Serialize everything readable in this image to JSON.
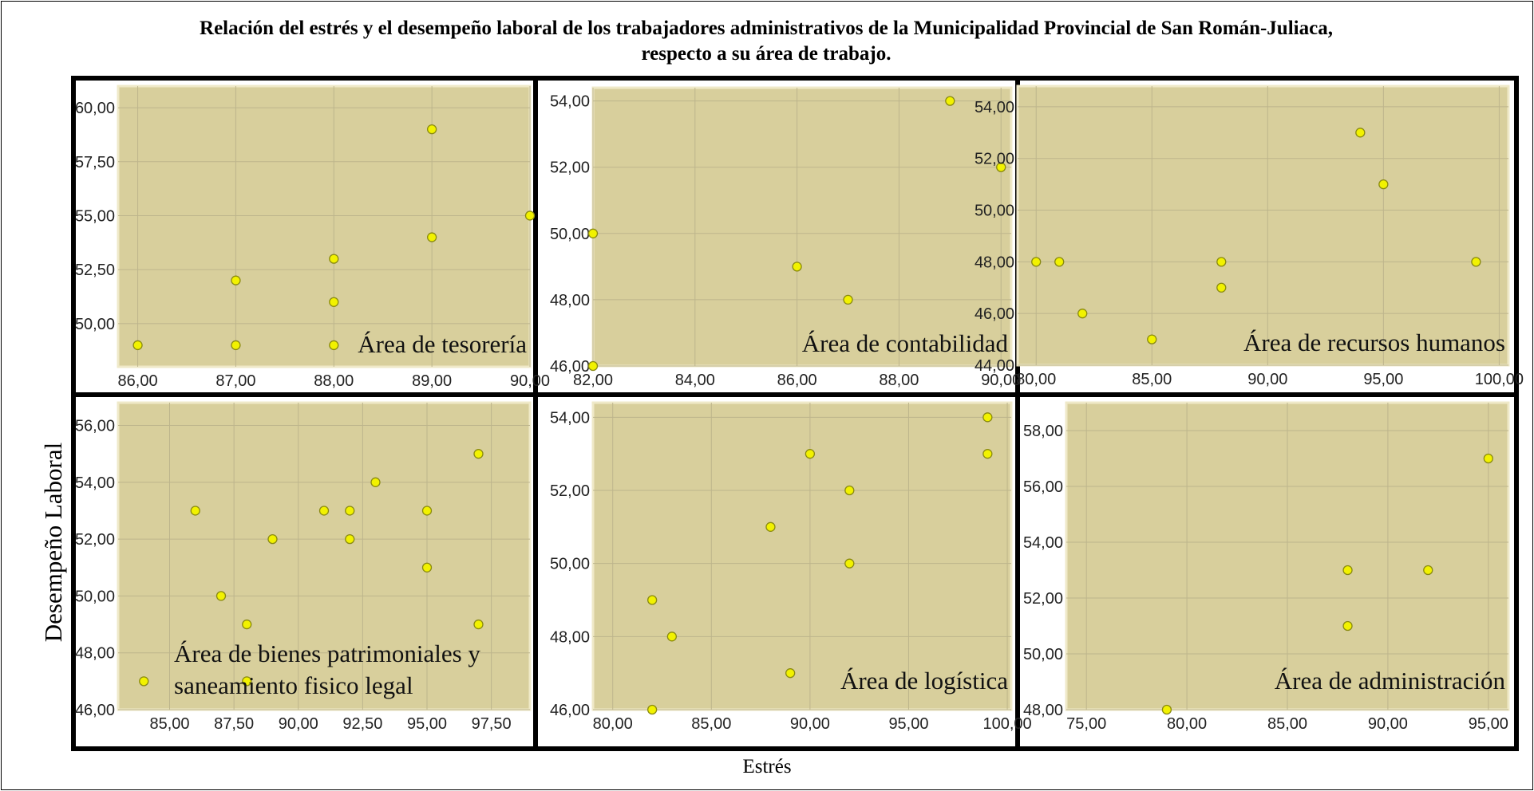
{
  "title_line1": "Relación del estrés y el desempeño laboral de los trabajadores administrativos de la Municipalidad Provincial de San Román-Juliaca,",
  "title_line2": "respecto a su área de trabajo.",
  "ylabel": "Desempeño Laboral",
  "xlabel": "Estrés",
  "colors": {
    "plot_bg": "#d8cf9c",
    "grid": "#bdb58c",
    "point_fill": "#f2f200",
    "point_stroke": "#8a8a10"
  },
  "chart_data": [
    {
      "type": "scatter",
      "title": "Área de tesorería",
      "xlim": [
        85.8,
        90.0
      ],
      "ylim": [
        48.0,
        61.0
      ],
      "xticks": [
        "86,00",
        "87,00",
        "88,00",
        "89,00",
        "90,00"
      ],
      "xtick_values": [
        86,
        87,
        88,
        89,
        90
      ],
      "yticks": [
        "50,00",
        "52,50",
        "55,00",
        "57,50",
        "60,00"
      ],
      "ytick_values": [
        50,
        52.5,
        55,
        57.5,
        60
      ],
      "grid": true,
      "points": [
        [
          86,
          49
        ],
        [
          87,
          49
        ],
        [
          87,
          52
        ],
        [
          88,
          49
        ],
        [
          88,
          51
        ],
        [
          88,
          53
        ],
        [
          89,
          54
        ],
        [
          89,
          59
        ],
        [
          90,
          55
        ]
      ]
    },
    {
      "type": "scatter",
      "title": "Área de contabilidad",
      "xlim": [
        82.0,
        90.2
      ],
      "ylim": [
        46.0,
        54.4
      ],
      "xticks": [
        "82,00",
        "84,00",
        "86,00",
        "88,00",
        "90,00"
      ],
      "xtick_values": [
        82,
        84,
        86,
        88,
        90
      ],
      "yticks": [
        "46,00",
        "48,00",
        "50,00",
        "52,00",
        "54,00"
      ],
      "ytick_values": [
        46,
        48,
        50,
        52,
        54
      ],
      "grid": true,
      "points": [
        [
          82,
          50
        ],
        [
          82,
          46
        ],
        [
          86,
          49
        ],
        [
          87,
          48
        ],
        [
          89,
          54
        ],
        [
          90,
          52
        ]
      ]
    },
    {
      "type": "scatter",
      "title": "Área de recursos humanos",
      "xlim": [
        79.2,
        100.4
      ],
      "ylim": [
        44.0,
        54.8
      ],
      "xticks": [
        "80,00",
        "85,00",
        "90,00",
        "95,00",
        "100,00"
      ],
      "xtick_values": [
        80,
        85,
        90,
        95,
        100
      ],
      "yticks": [
        "44,00",
        "46,00",
        "48,00",
        "50,00",
        "52,00",
        "54,00"
      ],
      "ytick_values": [
        44,
        46,
        48,
        50,
        52,
        54
      ],
      "grid": true,
      "points": [
        [
          80,
          48
        ],
        [
          81,
          48
        ],
        [
          82,
          46
        ],
        [
          85,
          45
        ],
        [
          88,
          48
        ],
        [
          88,
          47
        ],
        [
          94,
          53
        ],
        [
          95,
          51
        ],
        [
          99,
          48
        ]
      ]
    },
    {
      "type": "scatter",
      "title": "Área de bienes patrimoniales  y saneamiento fisico legal",
      "xlim": [
        83.0,
        99.0
      ],
      "ylim": [
        46.0,
        56.8
      ],
      "xticks": [
        "85,00",
        "87,50",
        "90,00",
        "92,50",
        "95,00",
        "97,50"
      ],
      "xtick_values": [
        85,
        87.5,
        90,
        92.5,
        95,
        97.5
      ],
      "yticks": [
        "46,00",
        "48,00",
        "50,00",
        "52,00",
        "54,00",
        "56,00"
      ],
      "ytick_values": [
        46,
        48,
        50,
        52,
        54,
        56
      ],
      "grid": true,
      "points": [
        [
          84,
          47
        ],
        [
          86,
          53
        ],
        [
          87,
          50
        ],
        [
          88,
          49
        ],
        [
          88,
          47
        ],
        [
          89,
          52
        ],
        [
          91,
          53
        ],
        [
          92,
          53
        ],
        [
          92,
          52
        ],
        [
          93,
          54
        ],
        [
          95,
          53
        ],
        [
          95,
          51
        ],
        [
          97,
          55
        ],
        [
          97,
          49
        ]
      ]
    },
    {
      "type": "scatter",
      "title": "Área de logística",
      "xlim": [
        79.0,
        100.2
      ],
      "ylim": [
        46.0,
        54.4
      ],
      "xticks": [
        "80,00",
        "85,00",
        "90,00",
        "95,00",
        "100,00"
      ],
      "xtick_values": [
        80,
        85,
        90,
        95,
        100
      ],
      "yticks": [
        "46,00",
        "48,00",
        "50,00",
        "52,00",
        "54,00"
      ],
      "ytick_values": [
        46,
        48,
        50,
        52,
        54
      ],
      "grid": true,
      "points": [
        [
          82,
          49
        ],
        [
          82,
          46
        ],
        [
          83,
          48
        ],
        [
          88,
          51
        ],
        [
          89,
          47
        ],
        [
          90,
          53
        ],
        [
          92,
          52
        ],
        [
          92,
          50
        ],
        [
          99,
          54
        ],
        [
          99,
          53
        ]
      ]
    },
    {
      "type": "scatter",
      "title": "Área de administración",
      "xlim": [
        74.0,
        96.0
      ],
      "ylim": [
        48.0,
        59.0
      ],
      "xticks": [
        "75,00",
        "80,00",
        "85,00",
        "90,00",
        "95,00"
      ],
      "xtick_values": [
        75,
        80,
        85,
        90,
        95
      ],
      "yticks": [
        "48,00",
        "50,00",
        "52,00",
        "54,00",
        "56,00",
        "58,00"
      ],
      "ytick_values": [
        48,
        50,
        52,
        54,
        56,
        58
      ],
      "grid": true,
      "points": [
        [
          79,
          48
        ],
        [
          88,
          53
        ],
        [
          88,
          51
        ],
        [
          92,
          53
        ],
        [
          95,
          57
        ]
      ]
    }
  ]
}
